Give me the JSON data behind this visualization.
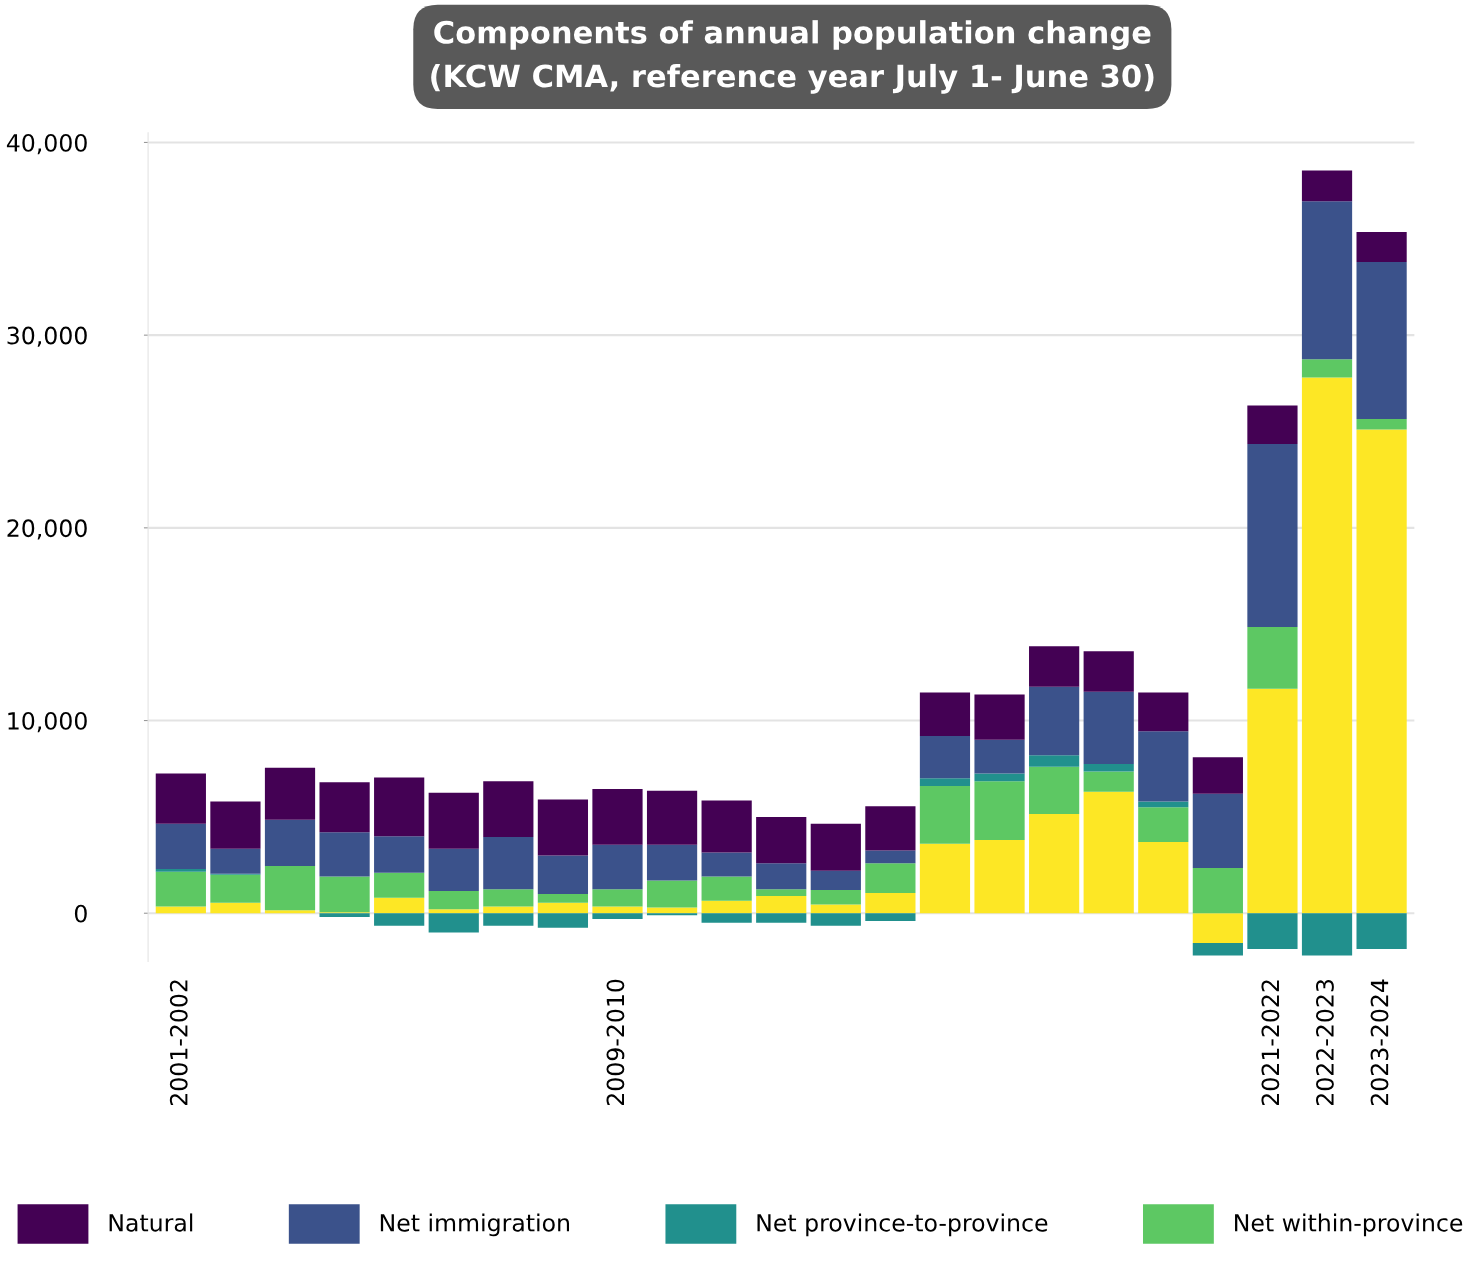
{
  "chart_data": {
    "type": "bar",
    "stacked": true,
    "title": "Components of annual population change\n(KCW CMA, reference year July 1- June 30)",
    "categories": [
      "2001-2002",
      null,
      null,
      null,
      null,
      null,
      null,
      null,
      "2009-2010",
      null,
      null,
      null,
      null,
      null,
      null,
      null,
      null,
      null,
      null,
      null,
      "2021-2022",
      "2022-2023",
      "2023-2024"
    ],
    "series": [
      {
        "color": "#fde725",
        "values": [
          350,
          550,
          150,
          50,
          800,
          200,
          350,
          550,
          350,
          300,
          650,
          900,
          450,
          1050,
          3600,
          3800,
          5150,
          6300,
          3700,
          -1550,
          11650,
          27800,
          25100
        ]
      },
      {
        "name": "Net within-province",
        "color": "#5dc863",
        "values": [
          1800,
          1450,
          2300,
          1850,
          1300,
          950,
          900,
          450,
          900,
          1400,
          1250,
          350,
          750,
          1550,
          3000,
          3050,
          2450,
          1050,
          1800,
          2350,
          3200,
          950,
          550
        ]
      },
      {
        "name": "Net province-to-province",
        "color": "#21908d",
        "values": [
          150,
          50,
          0,
          -200,
          -650,
          -1000,
          -650,
          -750,
          -300,
          -100,
          -500,
          -500,
          -650,
          -400,
          400,
          400,
          600,
          400,
          300,
          -650,
          -1850,
          -2200,
          -1850
        ]
      },
      {
        "name": "Net immigration",
        "color": "#3b528b",
        "values": [
          2350,
          1300,
          2400,
          2300,
          1900,
          2200,
          2700,
          2000,
          2300,
          1850,
          1250,
          1350,
          1000,
          650,
          2200,
          1750,
          3550,
          3750,
          3650,
          3850,
          9500,
          8200,
          8150
        ]
      },
      {
        "name": "Natural",
        "color": "#440154",
        "values": [
          2600,
          2450,
          2700,
          2600,
          3050,
          2900,
          2900,
          2900,
          2900,
          2800,
          2700,
          2400,
          2450,
          2300,
          2250,
          2350,
          2100,
          2100,
          2000,
          1900,
          2000,
          1600,
          1550
        ]
      }
    ],
    "ylim": [
      -2500,
      40500
    ],
    "yticks": [
      {
        "value": 0,
        "label": "0"
      },
      {
        "value": 10000,
        "label": "10,000"
      },
      {
        "value": 20000,
        "label": "20,000"
      },
      {
        "value": 30000,
        "label": "30,000"
      },
      {
        "value": 40000,
        "label": "40,000"
      }
    ],
    "grid": "y",
    "legend": "bottom"
  }
}
